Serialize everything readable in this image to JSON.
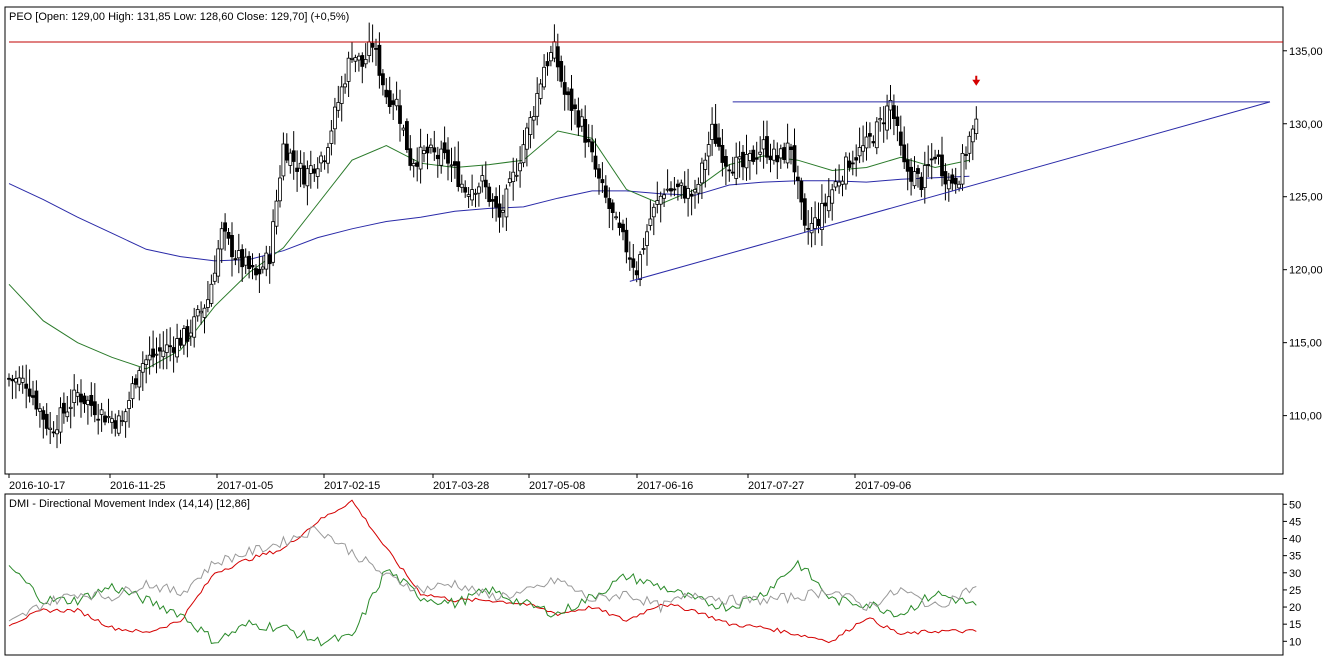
{
  "chart_data": [
    {
      "type": "candlestick",
      "title": "PEO [Open: 129,00  High: 131,85  Low: 128,60  Close: 129,70] (+0,5%)",
      "ylim": [
        106,
        138
      ],
      "y_ticks": [
        "110,00",
        "115,00",
        "120,00",
        "125,00",
        "130,00",
        "135,00"
      ],
      "y_tick_values": [
        110,
        115,
        120,
        125,
        130,
        135
      ],
      "x_tick_labels": [
        "2016-10-17",
        "2016-11-25",
        "2017-01-05",
        "2017-02-15",
        "2017-03-28",
        "2017-05-08",
        "2017-06-16",
        "2017-07-27",
        "2017-09-06"
      ],
      "price_anchors": [
        [
          0,
          112.5
        ],
        [
          5,
          112.3
        ],
        [
          12,
          109.0
        ],
        [
          20,
          111.5
        ],
        [
          28,
          110.0
        ],
        [
          33,
          109.5
        ],
        [
          38,
          113.5
        ],
        [
          45,
          114.5
        ],
        [
          52,
          115.5
        ],
        [
          58,
          118.0
        ],
        [
          62,
          122.5
        ],
        [
          66,
          121.0
        ],
        [
          72,
          119.5
        ],
        [
          76,
          121.0
        ],
        [
          80,
          128.5
        ],
        [
          86,
          126.5
        ],
        [
          92,
          128.0
        ],
        [
          96,
          131.5
        ],
        [
          100,
          135.0
        ],
        [
          103,
          134.0
        ],
        [
          106,
          135.5
        ],
        [
          110,
          132.0
        ],
        [
          113,
          131.5
        ],
        [
          117,
          127.5
        ],
        [
          122,
          128.0
        ],
        [
          128,
          127.5
        ],
        [
          133,
          125.5
        ],
        [
          138,
          126.0
        ],
        [
          143,
          123.5
        ],
        [
          148,
          127.0
        ],
        [
          153,
          131.0
        ],
        [
          156,
          134.0
        ],
        [
          159,
          135.0
        ],
        [
          162,
          132.0
        ],
        [
          167,
          130.0
        ],
        [
          172,
          126.0
        ],
        [
          177,
          123.0
        ],
        [
          183,
          120.0
        ],
        [
          187,
          123.5
        ],
        [
          191,
          125.5
        ],
        [
          196,
          125.5
        ],
        [
          200,
          125.0
        ],
        [
          205,
          129.5
        ],
        [
          209,
          127.5
        ],
        [
          214,
          127.0
        ],
        [
          220,
          128.5
        ],
        [
          224,
          127.5
        ],
        [
          228,
          128.5
        ],
        [
          232,
          122.5
        ],
        [
          236,
          123.5
        ],
        [
          240,
          125.5
        ],
        [
          245,
          127.5
        ],
        [
          250,
          128.5
        ],
        [
          254,
          130.0
        ],
        [
          257,
          131.5
        ],
        [
          261,
          127.0
        ],
        [
          266,
          126.0
        ],
        [
          270,
          128.0
        ],
        [
          274,
          126.0
        ],
        [
          277,
          126.5
        ],
        [
          280,
          129.0
        ],
        [
          282,
          129.7
        ]
      ],
      "series": [
        {
          "name": "",
          "color": "#2a2aa8",
          "points": [
            [
              0,
              125.9
            ],
            [
              10,
              124.8
            ],
            [
              20,
              123.6
            ],
            [
              30,
              122.5
            ],
            [
              40,
              121.4
            ],
            [
              50,
              120.9
            ],
            [
              60,
              120.6
            ],
            [
              70,
              120.7
            ],
            [
              80,
              121.3
            ],
            [
              90,
              122.2
            ],
            [
              100,
              122.8
            ],
            [
              110,
              123.3
            ],
            [
              120,
              123.6
            ],
            [
              130,
              124.0
            ],
            [
              140,
              124.2
            ],
            [
              150,
              124.3
            ],
            [
              160,
              124.9
            ],
            [
              170,
              125.4
            ],
            [
              180,
              125.4
            ],
            [
              190,
              125.2
            ],
            [
              200,
              125.1
            ],
            [
              210,
              125.8
            ],
            [
              220,
              126.0
            ],
            [
              230,
              126.1
            ],
            [
              240,
              126.1
            ],
            [
              250,
              126.0
            ],
            [
              260,
              126.2
            ],
            [
              270,
              126.3
            ],
            [
              280,
              126.4
            ]
          ]
        },
        {
          "name": "",
          "color": "#2a7a2a",
          "points": [
            [
              0,
              119.0
            ],
            [
              10,
              116.5
            ],
            [
              20,
              115.0
            ],
            [
              30,
              114.0
            ],
            [
              40,
              113.2
            ],
            [
              50,
              114.5
            ],
            [
              60,
              117.5
            ],
            [
              70,
              119.8
            ],
            [
              80,
              121.5
            ],
            [
              90,
              124.5
            ],
            [
              100,
              127.5
            ],
            [
              110,
              128.5
            ],
            [
              120,
              127.3
            ],
            [
              130,
              127.0
            ],
            [
              140,
              127.2
            ],
            [
              150,
              127.5
            ],
            [
              160,
              129.5
            ],
            [
              170,
              129.0
            ],
            [
              180,
              125.5
            ],
            [
              190,
              124.5
            ],
            [
              200,
              125.5
            ],
            [
              210,
              127.2
            ],
            [
              220,
              127.8
            ],
            [
              230,
              127.5
            ],
            [
              240,
              126.8
            ],
            [
              250,
              127.0
            ],
            [
              260,
              127.7
            ],
            [
              270,
              127.0
            ],
            [
              280,
              127.5
            ]
          ]
        }
      ],
      "lines": [
        {
          "color": "#c00000",
          "from": [
            0,
            135.6
          ],
          "to": [
            300,
            135.6
          ]
        },
        {
          "color": "#2a2aa8",
          "from": [
            211,
            131.5
          ],
          "to": [
            290,
            131.5
          ]
        },
        {
          "color": "#2a2aa8",
          "from": [
            181,
            119.2
          ],
          "to": [
            290,
            131.5
          ]
        }
      ],
      "markers": [
        {
          "x": 282,
          "y": 132.6,
          "color": "#d40000",
          "symbol": "down-arrow"
        }
      ]
    },
    {
      "type": "line",
      "title": "DMI - Directional Movement Index (14,14) [12,86]",
      "ylim": [
        6,
        53
      ],
      "y_ticks": [
        "10",
        "15",
        "20",
        "25",
        "30",
        "35",
        "40",
        "45",
        "50"
      ],
      "y_tick_values": [
        10,
        15,
        20,
        25,
        30,
        35,
        40,
        45,
        50
      ],
      "series": [
        {
          "name": "",
          "color": "#d40000",
          "points": [
            [
              0,
              15
            ],
            [
              10,
              19
            ],
            [
              20,
              19
            ],
            [
              30,
              14
            ],
            [
              40,
              12.5
            ],
            [
              50,
              16
            ],
            [
              60,
              30
            ],
            [
              70,
              34
            ],
            [
              80,
              37
            ],
            [
              90,
              45
            ],
            [
              100,
              51
            ],
            [
              110,
              37
            ],
            [
              120,
              24
            ],
            [
              130,
              22
            ],
            [
              140,
              22
            ],
            [
              150,
              21
            ],
            [
              160,
              18
            ],
            [
              170,
              20
            ],
            [
              180,
              16
            ],
            [
              190,
              21
            ],
            [
              200,
              19
            ],
            [
              210,
              15
            ],
            [
              220,
              14
            ],
            [
              230,
              12
            ],
            [
              240,
              10
            ],
            [
              250,
              17
            ],
            [
              260,
              12
            ],
            [
              270,
              13
            ],
            [
              282,
              12.9
            ]
          ]
        },
        {
          "name": "",
          "color": "#2a8a2a",
          "points": [
            [
              0,
              32
            ],
            [
              10,
              22
            ],
            [
              20,
              22
            ],
            [
              30,
              26
            ],
            [
              40,
              22
            ],
            [
              50,
              18
            ],
            [
              60,
              10
            ],
            [
              70,
              15
            ],
            [
              80,
              14
            ],
            [
              90,
              10
            ],
            [
              100,
              11
            ],
            [
              110,
              31
            ],
            [
              120,
              23
            ],
            [
              130,
              21
            ],
            [
              140,
              25
            ],
            [
              150,
              21
            ],
            [
              160,
              18
            ],
            [
              170,
              23
            ],
            [
              180,
              29
            ],
            [
              190,
              26
            ],
            [
              200,
              22
            ],
            [
              210,
              20
            ],
            [
              220,
              24
            ],
            [
              230,
              33
            ],
            [
              240,
              22
            ],
            [
              250,
              21
            ],
            [
              260,
              18
            ],
            [
              270,
              24
            ],
            [
              282,
              20.5
            ]
          ]
        },
        {
          "name": "",
          "color": "#999999",
          "points": [
            [
              0,
              15
            ],
            [
              10,
              21
            ],
            [
              20,
              24
            ],
            [
              30,
              23
            ],
            [
              40,
              27
            ],
            [
              50,
              24
            ],
            [
              60,
              33
            ],
            [
              70,
              36
            ],
            [
              80,
              39
            ],
            [
              90,
              43
            ],
            [
              100,
              36
            ],
            [
              110,
              29
            ],
            [
              120,
              25
            ],
            [
              130,
              27
            ],
            [
              140,
              23
            ],
            [
              150,
              24
            ],
            [
              160,
              28
            ],
            [
              170,
              22
            ],
            [
              180,
              24
            ],
            [
              190,
              20
            ],
            [
              200,
              24
            ],
            [
              210,
              22
            ],
            [
              220,
              22
            ],
            [
              230,
              23
            ],
            [
              240,
              25
            ],
            [
              250,
              20
            ],
            [
              260,
              25
            ],
            [
              270,
              20
            ],
            [
              282,
              26
            ]
          ]
        }
      ]
    }
  ]
}
